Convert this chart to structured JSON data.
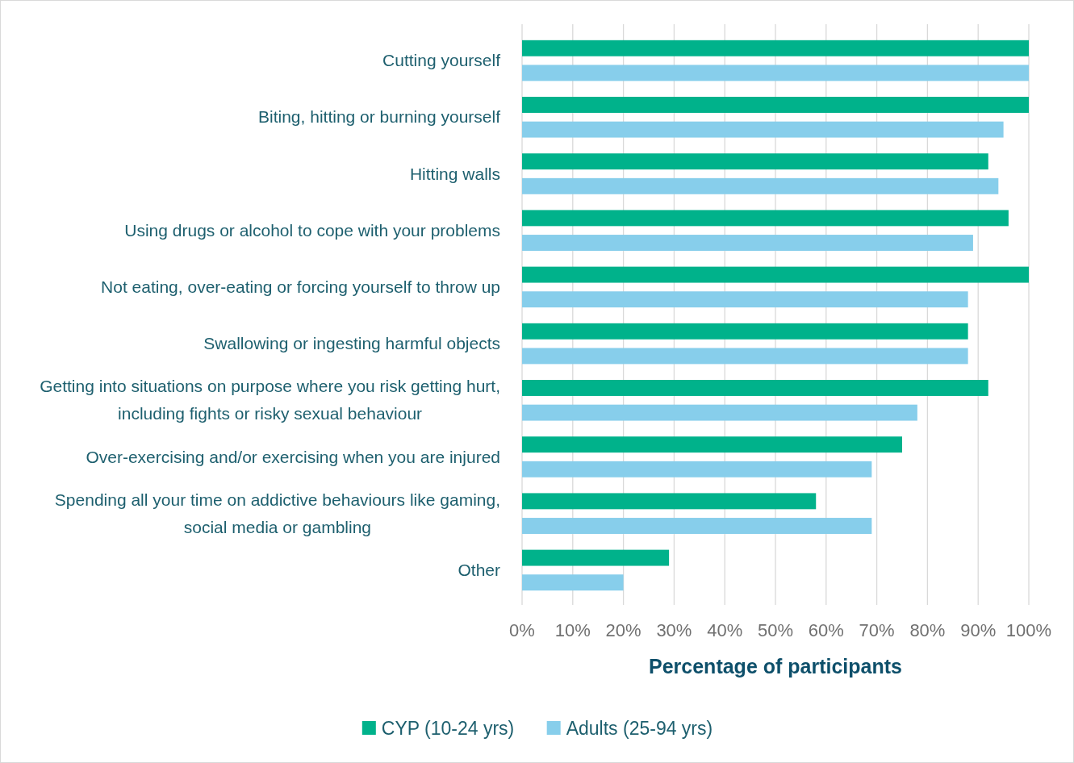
{
  "chart_data": {
    "type": "bar",
    "orientation": "horizontal",
    "xlabel": "Percentage of participants",
    "categories": [
      "Cutting yourself",
      "Biting, hitting or burning yourself",
      "Hitting walls",
      "Using drugs or alcohol to cope with your problems",
      "Not eating, over-eating or forcing yourself to throw up",
      "Swallowing or ingesting harmful objects",
      "Getting into situations on purpose where you risk getting hurt, including fights or risky sexual behaviour",
      "Over-exercising and/or exercising when you are injured",
      "Spending all your time on addictive behaviours like gaming, social media or gambling",
      "Other"
    ],
    "series": [
      {
        "name": "CYP (10-24 yrs)",
        "color": "#00b28b",
        "values": [
          100,
          100,
          92,
          96,
          100,
          88,
          92,
          75,
          58,
          29
        ]
      },
      {
        "name": "Adults (25-94 yrs)",
        "color": "#87ceeb",
        "values": [
          100,
          95,
          94,
          89,
          88,
          88,
          78,
          69,
          69,
          20
        ]
      }
    ],
    "xlim": [
      0,
      100
    ],
    "xticks": [
      {
        "value": 0,
        "label": "0%"
      },
      {
        "value": 10,
        "label": "10%"
      },
      {
        "value": 20,
        "label": "20%"
      },
      {
        "value": 30,
        "label": "30%"
      },
      {
        "value": 40,
        "label": "40%"
      },
      {
        "value": 50,
        "label": "50%"
      },
      {
        "value": 60,
        "label": "60%"
      },
      {
        "value": 70,
        "label": "70%"
      },
      {
        "value": 80,
        "label": "80%"
      },
      {
        "value": 90,
        "label": "90%"
      },
      {
        "value": 100,
        "label": "100%"
      }
    ],
    "grid": "x",
    "legend": "bottom"
  }
}
